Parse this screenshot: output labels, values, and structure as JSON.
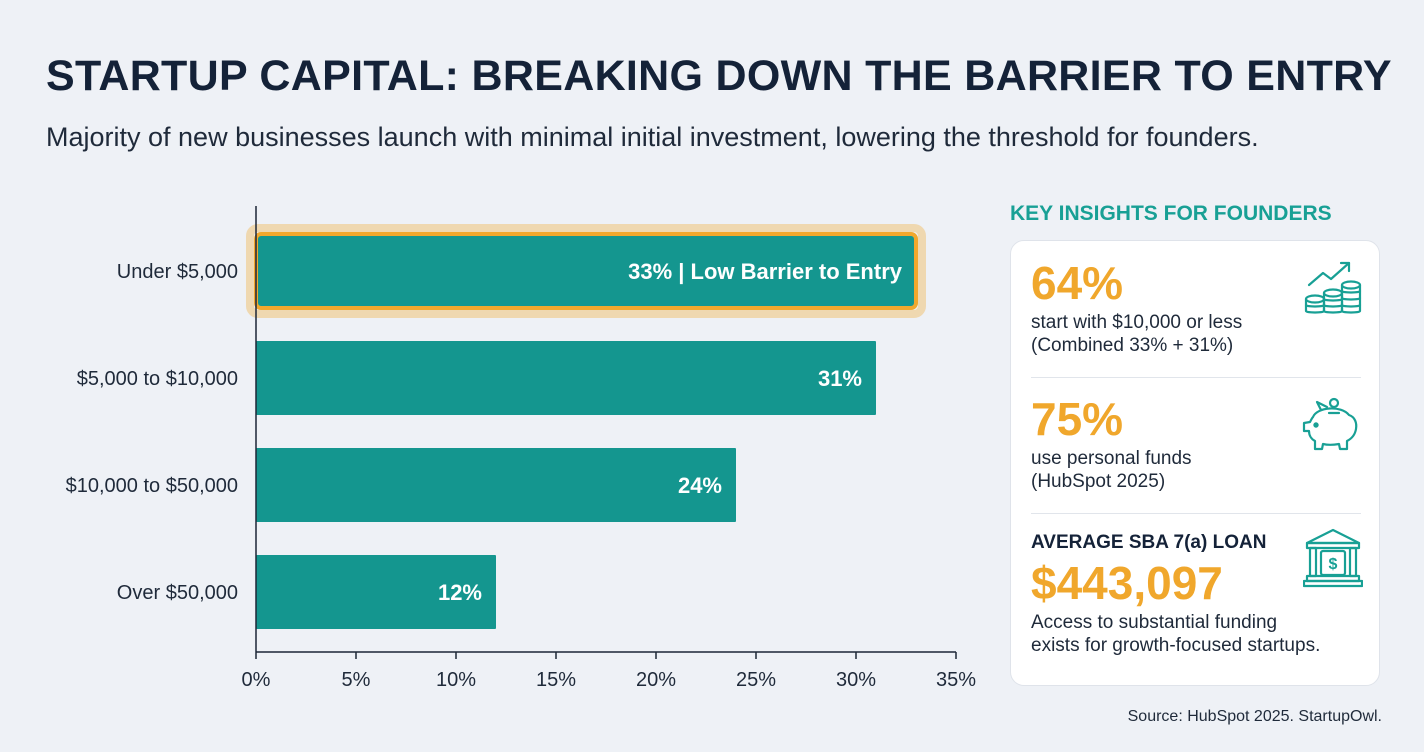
{
  "header": {
    "title": "STARTUP CAPITAL: BREAKING DOWN THE BARRIER TO ENTRY",
    "subtitle": "Majority of new businesses launch with minimal initial investment, lowering the threshold for founders."
  },
  "chart_data": {
    "type": "bar",
    "orientation": "horizontal",
    "categories": [
      "Under $5,000",
      "$5,000 to $10,000",
      "$10,000 to $50,000",
      "Over $50,000"
    ],
    "values": [
      33,
      31,
      24,
      12
    ],
    "bar_labels": [
      "33% | Low Barrier to Entry",
      "31%",
      "24%",
      "12%"
    ],
    "highlighted_category": "Under $5,000",
    "xlim": [
      0,
      35
    ],
    "xticks": [
      0,
      5,
      10,
      15,
      20,
      25,
      30,
      35
    ],
    "tick_suffix": "%",
    "grid": false,
    "colors": {
      "bar": "#14968f",
      "highlight": "#f2a82d",
      "label": "#ffffff"
    }
  },
  "insights": {
    "heading": "KEY INSIGHTS FOR FOUNDERS",
    "items": [
      {
        "value": "64%",
        "line1": "start with $10,000 or less",
        "line2": "(Combined 33% + 31%)",
        "icon": "growth-coins-icon"
      },
      {
        "value": "75%",
        "line1": "use personal funds",
        "line2": "(HubSpot 2025)",
        "icon": "piggy-bank-icon"
      },
      {
        "label": "AVERAGE SBA 7(a) LOAN",
        "value": "$443,097",
        "line1": "Access to substantial funding",
        "line2": "exists for growth-focused startups.",
        "icon": "bank-icon"
      }
    ],
    "colors": {
      "accent": "#f0a72c",
      "icon": "#18a095"
    }
  },
  "footer": {
    "source": "Source: HubSpot 2025. StartupOwl."
  }
}
